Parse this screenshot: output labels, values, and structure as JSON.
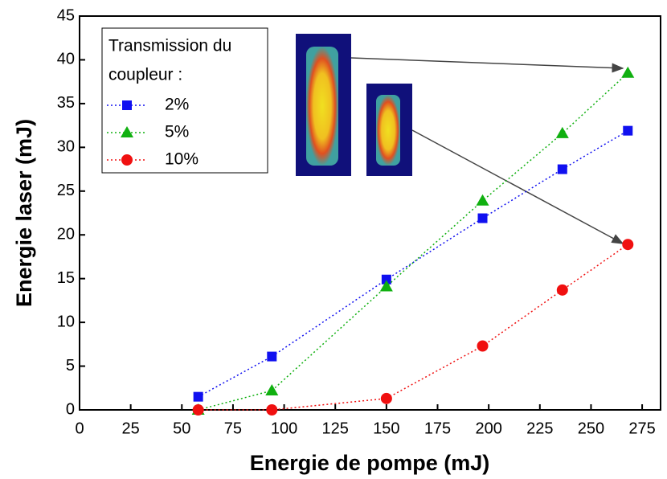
{
  "chart_data": {
    "type": "line",
    "x_label": "Energie de pompe (mJ)",
    "y_label": "Energie laser (mJ)",
    "legend_title": [
      "Transmission du",
      "coupleur :"
    ],
    "x": [
      58,
      94,
      150,
      197,
      236,
      268
    ],
    "series": [
      {
        "name": "2%",
        "color": "#1010f0",
        "marker": "square",
        "values": [
          1.5,
          6.1,
          14.9,
          21.9,
          27.5,
          31.9
        ]
      },
      {
        "name": "5%",
        "color": "#10b010",
        "marker": "triangle",
        "values": [
          0,
          2.2,
          14.1,
          23.9,
          31.6,
          38.5
        ]
      },
      {
        "name": "10%",
        "color": "#f01010",
        "marker": "circle",
        "values": [
          0,
          0,
          1.3,
          7.3,
          13.7,
          18.9
        ]
      }
    ],
    "xlim": [
      0,
      284
    ],
    "xticks": [
      0,
      25,
      50,
      75,
      100,
      125,
      150,
      175,
      200,
      225,
      250,
      275
    ],
    "ylim": [
      0,
      45
    ],
    "yticks": [
      0,
      5,
      10,
      15,
      20,
      25,
      30,
      35,
      40,
      45
    ]
  }
}
